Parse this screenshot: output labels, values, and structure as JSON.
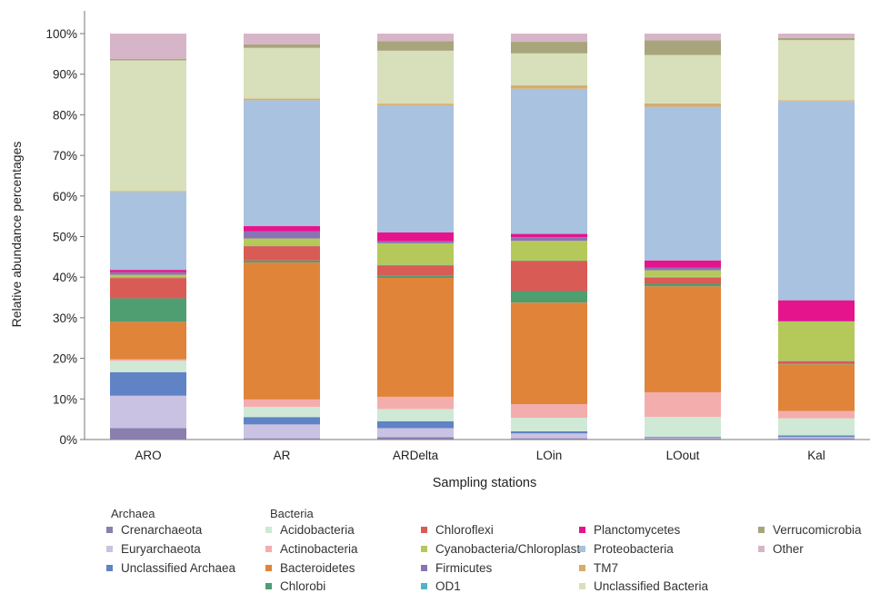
{
  "chart_data": {
    "type": "bar",
    "stacked": true,
    "percent_stacked": true,
    "xlabel": "Sampling stations",
    "ylabel": "Relative abundance percentages",
    "ylim": [
      0,
      100
    ],
    "yticks": [
      "0%",
      "10%",
      "20%",
      "30%",
      "40%",
      "50%",
      "60%",
      "70%",
      "80%",
      "90%",
      "100%"
    ],
    "grid": false,
    "legend_position": "bottom",
    "legend_groups": [
      "Archaea",
      "Bacteria"
    ],
    "categories": [
      "ARO",
      "AR",
      "ARDelta",
      "LOin",
      "LOout",
      "Kal"
    ],
    "series": [
      {
        "name": "Crenarchaeota",
        "group": "Archaea",
        "color": "#8a7fae",
        "values": [
          2.8,
          0.3,
          0.6,
          0.3,
          0.3,
          0.3
        ]
      },
      {
        "name": "Euryarchaeota",
        "group": "Archaea",
        "color": "#c9c2e2",
        "values": [
          8.0,
          3.4,
          2.2,
          1.2,
          0.2,
          0.3
        ]
      },
      {
        "name": "Unclassified Archaea",
        "group": "Archaea",
        "color": "#5f83c4",
        "values": [
          5.8,
          1.8,
          1.7,
          0.5,
          0.2,
          0.4
        ]
      },
      {
        "name": "Acidobacteria",
        "group": "Bacteria",
        "color": "#cfe9d6",
        "values": [
          2.8,
          2.5,
          3.0,
          3.3,
          4.8,
          4.2
        ]
      },
      {
        "name": "Actinobacteria",
        "group": "Bacteria",
        "color": "#f4adad",
        "values": [
          0.4,
          1.8,
          3.0,
          3.3,
          6.0,
          1.8
        ]
      },
      {
        "name": "Bacteroidetes",
        "group": "Bacteria",
        "color": "#e0843a",
        "values": [
          9.2,
          33.5,
          29.2,
          24.7,
          25.8,
          11.4
        ]
      },
      {
        "name": "Chlorobi",
        "group": "Bacteria",
        "color": "#4f9e72",
        "values": [
          5.8,
          0.5,
          0.5,
          2.8,
          0.6,
          0.2
        ]
      },
      {
        "name": "Chloroflexi",
        "group": "Bacteria",
        "color": "#d95b55",
        "values": [
          5.0,
          3.5,
          2.6,
          7.3,
          1.5,
          0.6
        ]
      },
      {
        "name": "OD1",
        "group": "Bacteria",
        "color": "#4fb5c5",
        "values": [
          0.2,
          0.1,
          0.1,
          0.1,
          0.2,
          0.1
        ]
      },
      {
        "name": "Cyanobacteria/Chloroplast",
        "group": "Bacteria",
        "color": "#b5c95a",
        "values": [
          0.6,
          1.8,
          5.3,
          4.8,
          1.6,
          9.6
        ]
      },
      {
        "name": "Firmicutes",
        "group": "Bacteria",
        "color": "#8a73b5",
        "values": [
          0.6,
          1.7,
          0.5,
          0.9,
          0.6,
          0.1
        ]
      },
      {
        "name": "Planctomycetes",
        "group": "Bacteria",
        "color": "#e5148c",
        "values": [
          0.6,
          1.3,
          2.2,
          0.8,
          1.8,
          5.1
        ]
      },
      {
        "name": "Proteobacteria",
        "group": "Bacteria",
        "color": "#a9c2df",
        "values": [
          19.2,
          30.8,
          31.2,
          35.3,
          37.4,
          48.8
        ]
      },
      {
        "name": "TM7",
        "group": "Bacteria",
        "color": "#d9ab6a",
        "values": [
          0.2,
          0.4,
          0.4,
          0.8,
          0.8,
          0.2
        ]
      },
      {
        "name": "Unclassified Bacteria",
        "group": "Bacteria",
        "color": "#d7e0ba",
        "values": [
          32.2,
          12.4,
          13.0,
          7.8,
          11.8,
          14.7
        ]
      },
      {
        "name": "Verrucomicrobia",
        "group": "Bacteria",
        "color": "#a8a57c",
        "values": [
          0.4,
          0.9,
          2.3,
          2.8,
          3.6,
          0.5
        ]
      },
      {
        "name": "Other",
        "group": "Bacteria",
        "color": "#d7b5c8",
        "values": [
          6.2,
          2.6,
          1.9,
          2.0,
          1.6,
          1.1
        ]
      }
    ]
  }
}
